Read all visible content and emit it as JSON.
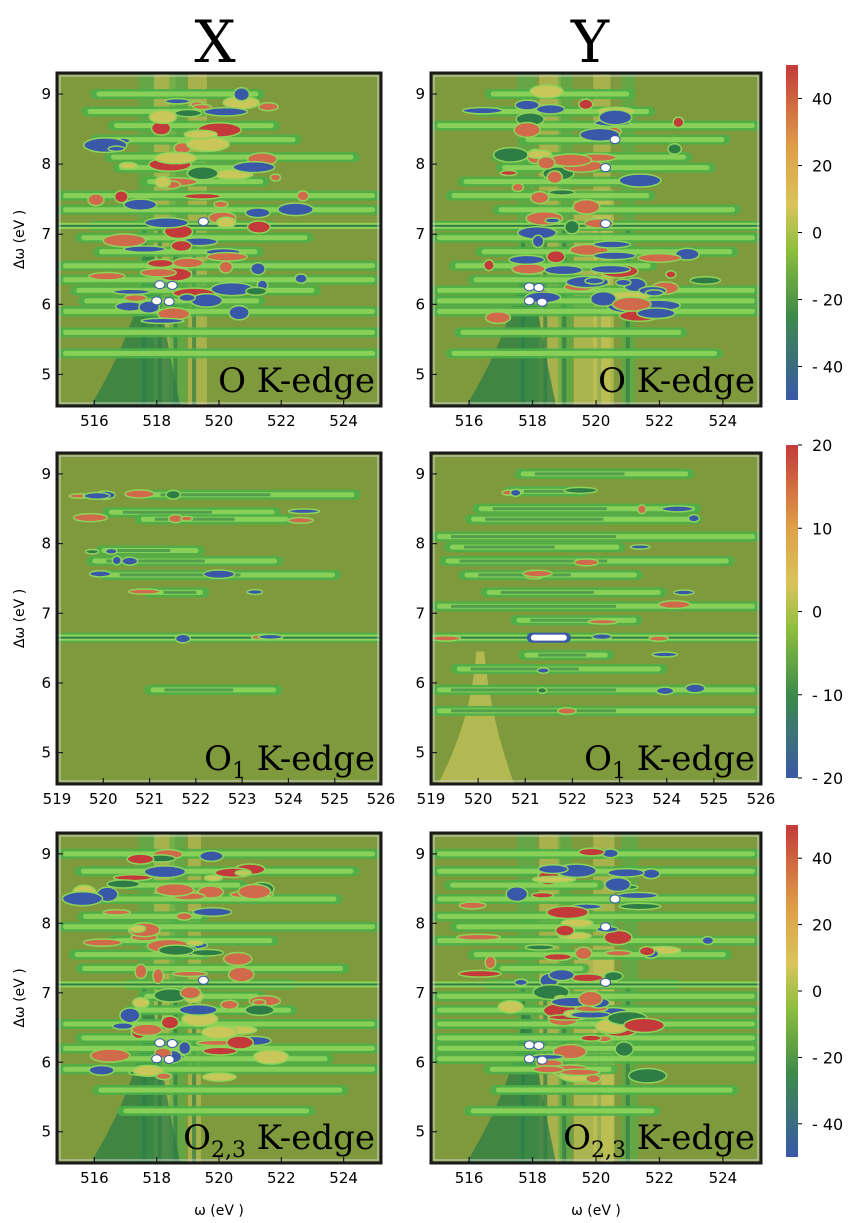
{
  "chart_data": [
    {
      "type": "heatmap",
      "column": "X",
      "annotation": {
        "main": "O",
        "sub": "",
        "suffix": "K-edge"
      },
      "xlabel": "",
      "ylabel": "Δω (eV )",
      "xlim": [
        514.8,
        525.2
      ],
      "ylim": [
        4.55,
        9.3
      ],
      "xticks": [
        516,
        518,
        520,
        522,
        524
      ],
      "yticks": [
        5,
        6,
        7,
        8,
        9
      ],
      "colorbar": {
        "ticks": [
          "40",
          "20",
          "0",
          "- 20",
          "- 40"
        ],
        "range": [
          -50,
          50
        ]
      }
    },
    {
      "type": "heatmap",
      "column": "Y",
      "annotation": {
        "main": "O",
        "sub": "",
        "suffix": "K-edge"
      },
      "xlabel": "",
      "ylabel": "",
      "xlim": [
        514.8,
        525.2
      ],
      "ylim": [
        4.55,
        9.3
      ],
      "xticks": [
        516,
        518,
        520,
        522,
        524
      ],
      "yticks": [
        5,
        6,
        7,
        8,
        9
      ]
    },
    {
      "type": "heatmap",
      "column": "X",
      "annotation": {
        "main": "O",
        "sub": "1",
        "suffix": "K-edge"
      },
      "xlabel": "",
      "ylabel": "Δω (eV )",
      "xlim": [
        519,
        526
      ],
      "ylim": [
        4.55,
        9.3
      ],
      "xticks": [
        519,
        520,
        521,
        522,
        523,
        524,
        525,
        526
      ],
      "yticks": [
        5,
        6,
        7,
        8,
        9
      ],
      "colorbar": {
        "ticks": [
          "20",
          "10",
          "0",
          "- 10",
          "- 20"
        ],
        "range": [
          -20,
          20
        ]
      }
    },
    {
      "type": "heatmap",
      "column": "Y",
      "annotation": {
        "main": "O",
        "sub": "1",
        "suffix": "K-edge"
      },
      "xlabel": "",
      "ylabel": "",
      "xlim": [
        519,
        526
      ],
      "ylim": [
        4.55,
        9.3
      ],
      "xticks": [
        519,
        520,
        521,
        522,
        523,
        524,
        525,
        526
      ],
      "yticks": [
        5,
        6,
        7,
        8,
        9
      ]
    },
    {
      "type": "heatmap",
      "column": "X",
      "annotation": {
        "main": "O",
        "sub": "2,3",
        "suffix": "K-edge"
      },
      "xlabel": "ω (eV )",
      "ylabel": "Δω (eV )",
      "xlim": [
        514.8,
        525.2
      ],
      "ylim": [
        4.55,
        9.3
      ],
      "xticks": [
        516,
        518,
        520,
        522,
        524
      ],
      "yticks": [
        5,
        6,
        7,
        8,
        9
      ],
      "colorbar": {
        "ticks": [
          "40",
          "20",
          "0",
          "- 20",
          "- 40"
        ],
        "range": [
          -50,
          50
        ]
      }
    },
    {
      "type": "heatmap",
      "column": "Y",
      "annotation": {
        "main": "O",
        "sub": "2,3",
        "suffix": "K-edge"
      },
      "xlabel": "ω (eV )",
      "ylabel": "",
      "xlim": [
        514.8,
        525.2
      ],
      "ylim": [
        4.55,
        9.3
      ],
      "xticks": [
        516,
        518,
        520,
        522,
        524
      ],
      "yticks": [
        5,
        6,
        7,
        8,
        9
      ]
    }
  ],
  "column_titles": [
    "X",
    "Y"
  ],
  "colors": {
    "background": "#7e9a3c",
    "levels": [
      "#3a58a8",
      "#2e7d46",
      "#4cb048",
      "#8fd45a",
      "#c9c65a",
      "#d06a4a",
      "#c43a3a"
    ],
    "colorbar_gradient": [
      "#c43a3a",
      "#e0a048",
      "#d8c45a",
      "#8fbf3c",
      "#3c8a4a",
      "#3a58a8"
    ]
  }
}
